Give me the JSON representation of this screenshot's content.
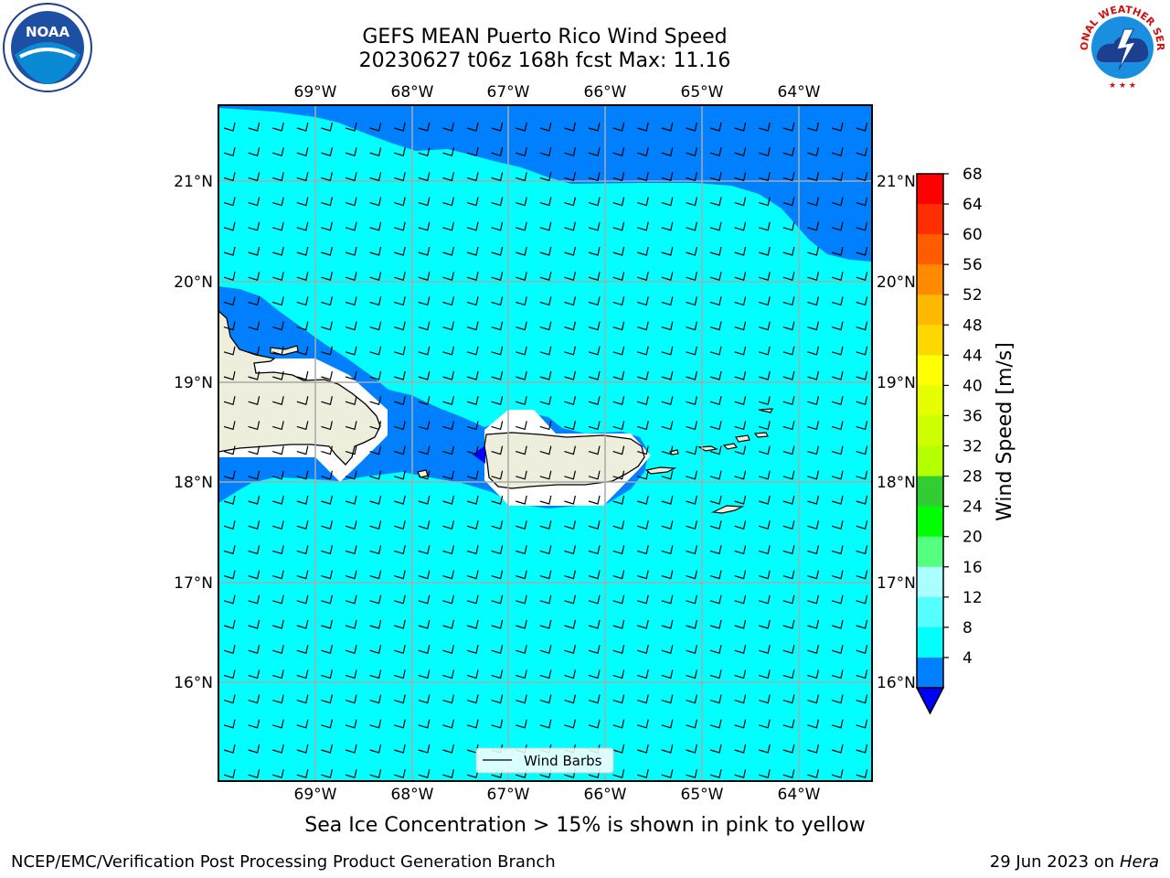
{
  "title": {
    "line1": "GEFS MEAN Puerto Rico Wind Speed",
    "line2": "20230627 t06z 168h fcst   Max: 11.16"
  },
  "logos": {
    "left": {
      "text": "NOAA",
      "icon": "noaa-logo"
    },
    "right": {
      "text": "NATIONAL WEATHER SERVICE",
      "icon": "nws-logo"
    }
  },
  "map": {
    "lon_labels": [
      "69°W",
      "68°W",
      "67°W",
      "66°W",
      "65°W",
      "64°W"
    ],
    "lat_labels": [
      "21°N",
      "20°N",
      "19°N",
      "18°N",
      "17°N",
      "16°N"
    ],
    "legend_label": "Wind Barbs",
    "colors": {
      "ocean_light": "#00ffff",
      "ocean_dark": "#0080ff",
      "land": "#eeeedd",
      "min_color": "#0000ff"
    }
  },
  "colorbar": {
    "label": "Wind Speed [m/s]",
    "ticks": [
      "68",
      "64",
      "60",
      "56",
      "52",
      "48",
      "44",
      "40",
      "36",
      "32",
      "28",
      "24",
      "20",
      "16",
      "12",
      "8",
      "4"
    ],
    "colors": [
      "#ff0000",
      "#ff2e00",
      "#ff5c00",
      "#ff8a00",
      "#ffb800",
      "#ffd700",
      "#ffff00",
      "#e6ff00",
      "#cdff00",
      "#b4ff00",
      "#32cd32",
      "#00ff00",
      "#55ff7f",
      "#aaffff",
      "#55ffff",
      "#00ffff",
      "#0080ff"
    ],
    "extend_color": "#0000ff"
  },
  "caption": "Sea Ice Concentration > 15% is shown in pink to yellow",
  "footer": {
    "left": "NCEP/EMC/Verification Post Processing Product Generation Branch",
    "date": "29 Jun 2023 on",
    "host": "Hera"
  }
}
